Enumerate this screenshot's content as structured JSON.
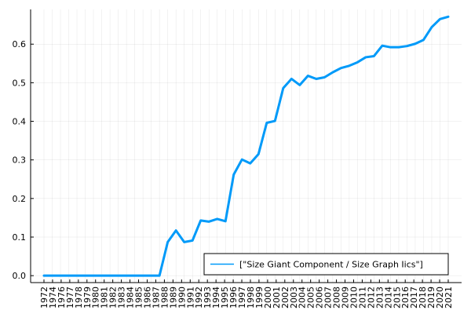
{
  "chart_data": {
    "type": "line",
    "categories": [
      "1972",
      "1973",
      "1974",
      "1975",
      "1976",
      "1977",
      "1978",
      "1979",
      "1980",
      "1981",
      "1982",
      "1983",
      "1984",
      "1985",
      "1986",
      "1987",
      "1988",
      "1989",
      "1990",
      "1991",
      "1992",
      "1993",
      "1994",
      "1995",
      "1996",
      "1997",
      "1998",
      "1999",
      "2000",
      "2001",
      "2002",
      "2003",
      "2004",
      "2005",
      "2006",
      "2007",
      "2008",
      "2009",
      "2010",
      "2011",
      "2012",
      "2013",
      "2014",
      "2015",
      "2016",
      "2017",
      "2018",
      "2019",
      "2020",
      "2021"
    ],
    "x_tick_labels": [
      "1972",
      "1974",
      "1976",
      "1977",
      "1978",
      "1979",
      "1980",
      "1981",
      "1982",
      "1983",
      "1984",
      "1985",
      "1986",
      "1987",
      "1988",
      "1989",
      "1990",
      "1991",
      "1992",
      "1993",
      "1994",
      "1995",
      "1996",
      "1997",
      "1998",
      "1999",
      "2000",
      "2001",
      "2002",
      "2003",
      "2004",
      "2005",
      "2006",
      "2007",
      "2008",
      "2009",
      "2010",
      "2011",
      "2012",
      "2013",
      "2014",
      "2015",
      "2016",
      "2017",
      "2018",
      "2019",
      "2020",
      "2021"
    ],
    "y_ticks": [
      0.0,
      0.1,
      0.2,
      0.3,
      0.4,
      0.5,
      0.6
    ],
    "y_tick_labels": [
      "0.0",
      "0.1",
      "0.2",
      "0.3",
      "0.4",
      "0.5",
      "0.6"
    ],
    "ylim": [
      -0.018,
      0.69
    ],
    "grid": true,
    "legend_position": "bottom-right",
    "series": [
      {
        "name": "[\"Size Giant Component / Size Graph Iics\"]",
        "color": "#009af9",
        "values": [
          0,
          0,
          0,
          0,
          0,
          0,
          0,
          0,
          0,
          0,
          0,
          0,
          0,
          0,
          0,
          0.087,
          0.117,
          0.087,
          0.091,
          0.143,
          0.14,
          0.147,
          0.141,
          0.262,
          0.301,
          0.291,
          0.315,
          0.396,
          0.401,
          0.486,
          0.51,
          0.494,
          0.518,
          0.51,
          0.514,
          0.527,
          0.538,
          0.544,
          0.553,
          0.566,
          0.569,
          0.596,
          0.592,
          0.592,
          0.595,
          0.601,
          0.611,
          0.644,
          0.665,
          0.671
        ]
      }
    ]
  }
}
